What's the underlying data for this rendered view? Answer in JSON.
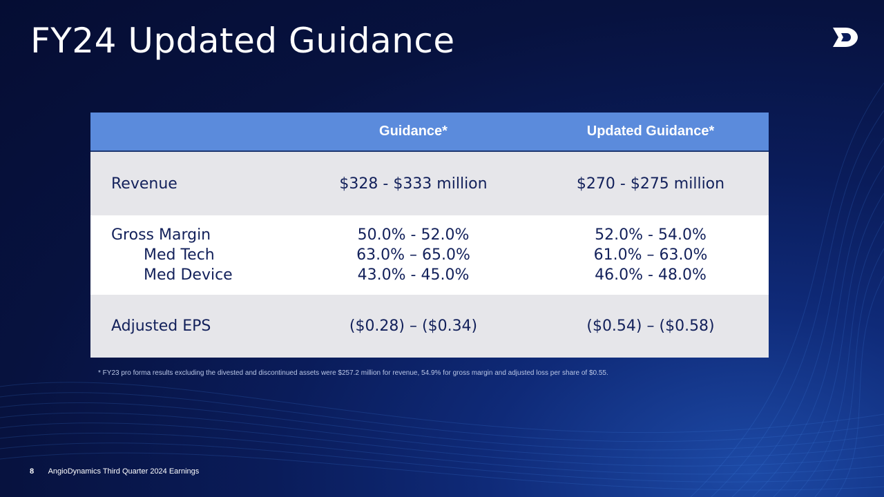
{
  "slide": {
    "title": "FY24 Updated Guidance",
    "footnote": "* FY23 pro forma results excluding the divested and discontinued assets were $257.2 million for revenue, 54.9% for gross margin and  adjusted loss per share of $0.55.",
    "footer": {
      "page_number": "8",
      "text": "AngioDynamics Third Quarter 2024 Earnings"
    }
  },
  "table": {
    "headers": [
      "",
      "Guidance*",
      "Updated Guidance*"
    ],
    "rows": {
      "revenue": {
        "label": "Revenue",
        "guidance": "$328 - $333 million",
        "updated": "$270 - $275 million"
      },
      "gross_margin": {
        "label": "Gross Margin",
        "guidance": "50.0% - 52.0%",
        "updated": "52.0% - 54.0%",
        "med_tech": {
          "label": "Med Tech",
          "guidance": "63.0% – 65.0%",
          "updated": "61.0% – 63.0%"
        },
        "med_device": {
          "label": "Med Device",
          "guidance": "43.0% - 45.0%",
          "updated": "46.0% - 48.0%"
        }
      },
      "adjusted_eps": {
        "label": "Adjusted EPS",
        "guidance": "($0.28) – ($0.34)",
        "updated": "($0.54) – ($0.58)"
      }
    }
  },
  "colors": {
    "header_fill": "#5b8bdc",
    "row_gray": "#e6e6ea",
    "row_white": "#ffffff",
    "text_dark": "#12205a",
    "background": "#07123f"
  },
  "icons": {
    "logo": "angiodynamics-logo-icon"
  }
}
